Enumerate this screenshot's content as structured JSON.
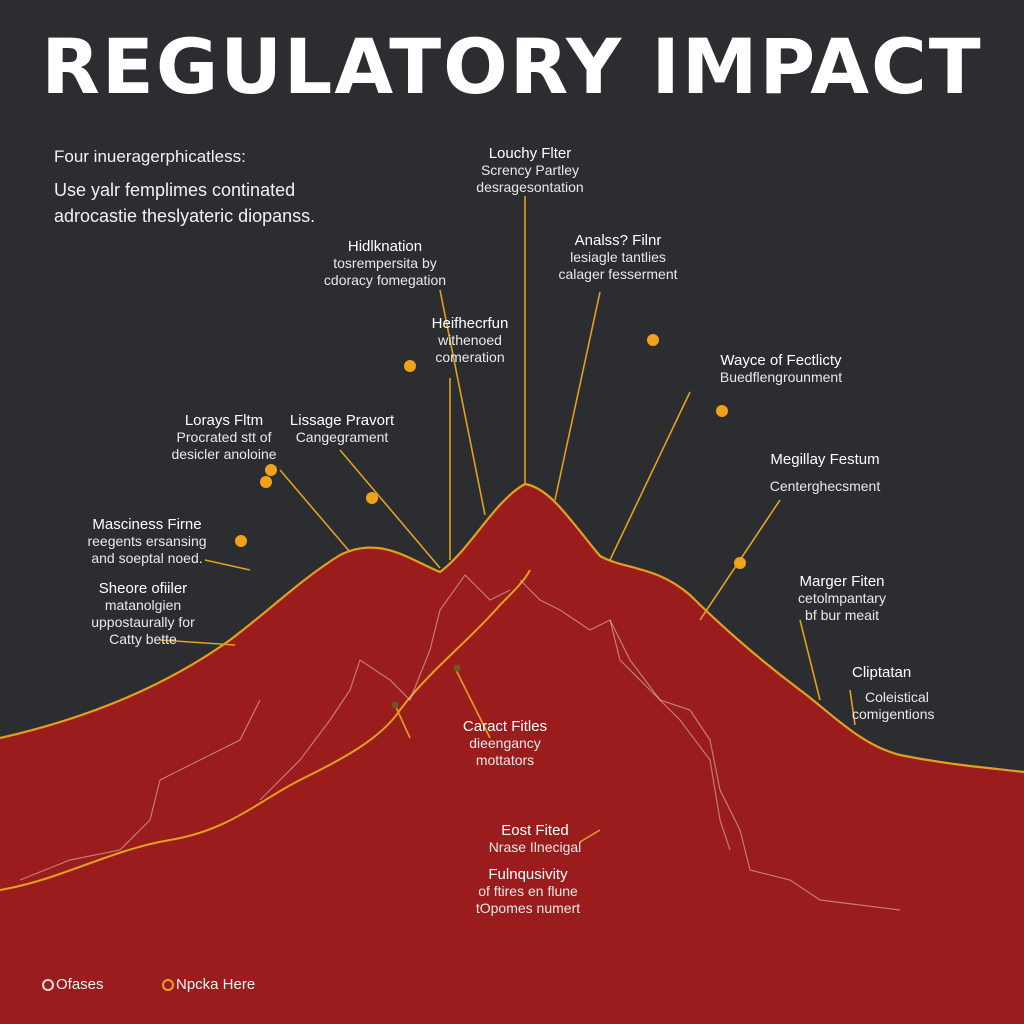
{
  "title": "REGULATORY IMPACT",
  "intro": {
    "heading": "Four inueragerphicatless:",
    "line1": "Use yalr femplimes continated",
    "line2": "adrocastie theslyateric diopanss."
  },
  "colors": {
    "background": "#2b2d30",
    "mountain": "#9a1c1c",
    "ridge": "#e2a020",
    "marker": "#f2a21a"
  },
  "labels": {
    "a": {
      "title": "Louchy Flter",
      "l1": "Scrency Partley",
      "l2": "desragesontation"
    },
    "b": {
      "title": "Hidlknation",
      "l1": "tosrempersita by",
      "l2": "cdoracy fomegation"
    },
    "c": {
      "title": "Analss? Filnr",
      "l1": "lesiagle tantlies",
      "l2": "calager fesserment"
    },
    "d": {
      "title": "Heifhecrfun",
      "l1": "withenoed",
      "l2": "comeration"
    },
    "e": {
      "title": "Wayce of Fectlicty",
      "l1": "Buedflengrounment"
    },
    "f": {
      "title": "Lorays Fltm",
      "l1": "Procrated stt of",
      "l2": "desicler anoloine"
    },
    "g": {
      "title": "Lissage Pravort",
      "l1": "Cangegrament"
    },
    "h": {
      "title": "Megillay Festum",
      "l1": "Centerghecsment"
    },
    "i": {
      "title": "Masciness Firne",
      "l1": "reegents ersansing",
      "l2": "and soeptal noed."
    },
    "j": {
      "title": "Sheore ofiiler",
      "l1": "matanolgien",
      "l2": "uppostaurally for",
      "l3": "Catty bette"
    },
    "k": {
      "title": "Marger Fiten",
      "l1": "cetolmpantary",
      "l2": "bf bur meait"
    },
    "l": {
      "title": "Cliptatan",
      "l1": "Coleistical",
      "l2": "comigentions"
    },
    "m": {
      "title": "Caract Fitles",
      "l1": "dieengancy",
      "l2": "mottators"
    },
    "n": {
      "title": "Eost Fited",
      "l1": "Nrase Ilnecigal"
    },
    "o": {
      "title": "Fulnqusivity",
      "l1": "of ftires en flune",
      "l2": "tOpomes numert"
    }
  },
  "legend": {
    "item1": "Ofases",
    "item2": "Npcka Here"
  }
}
